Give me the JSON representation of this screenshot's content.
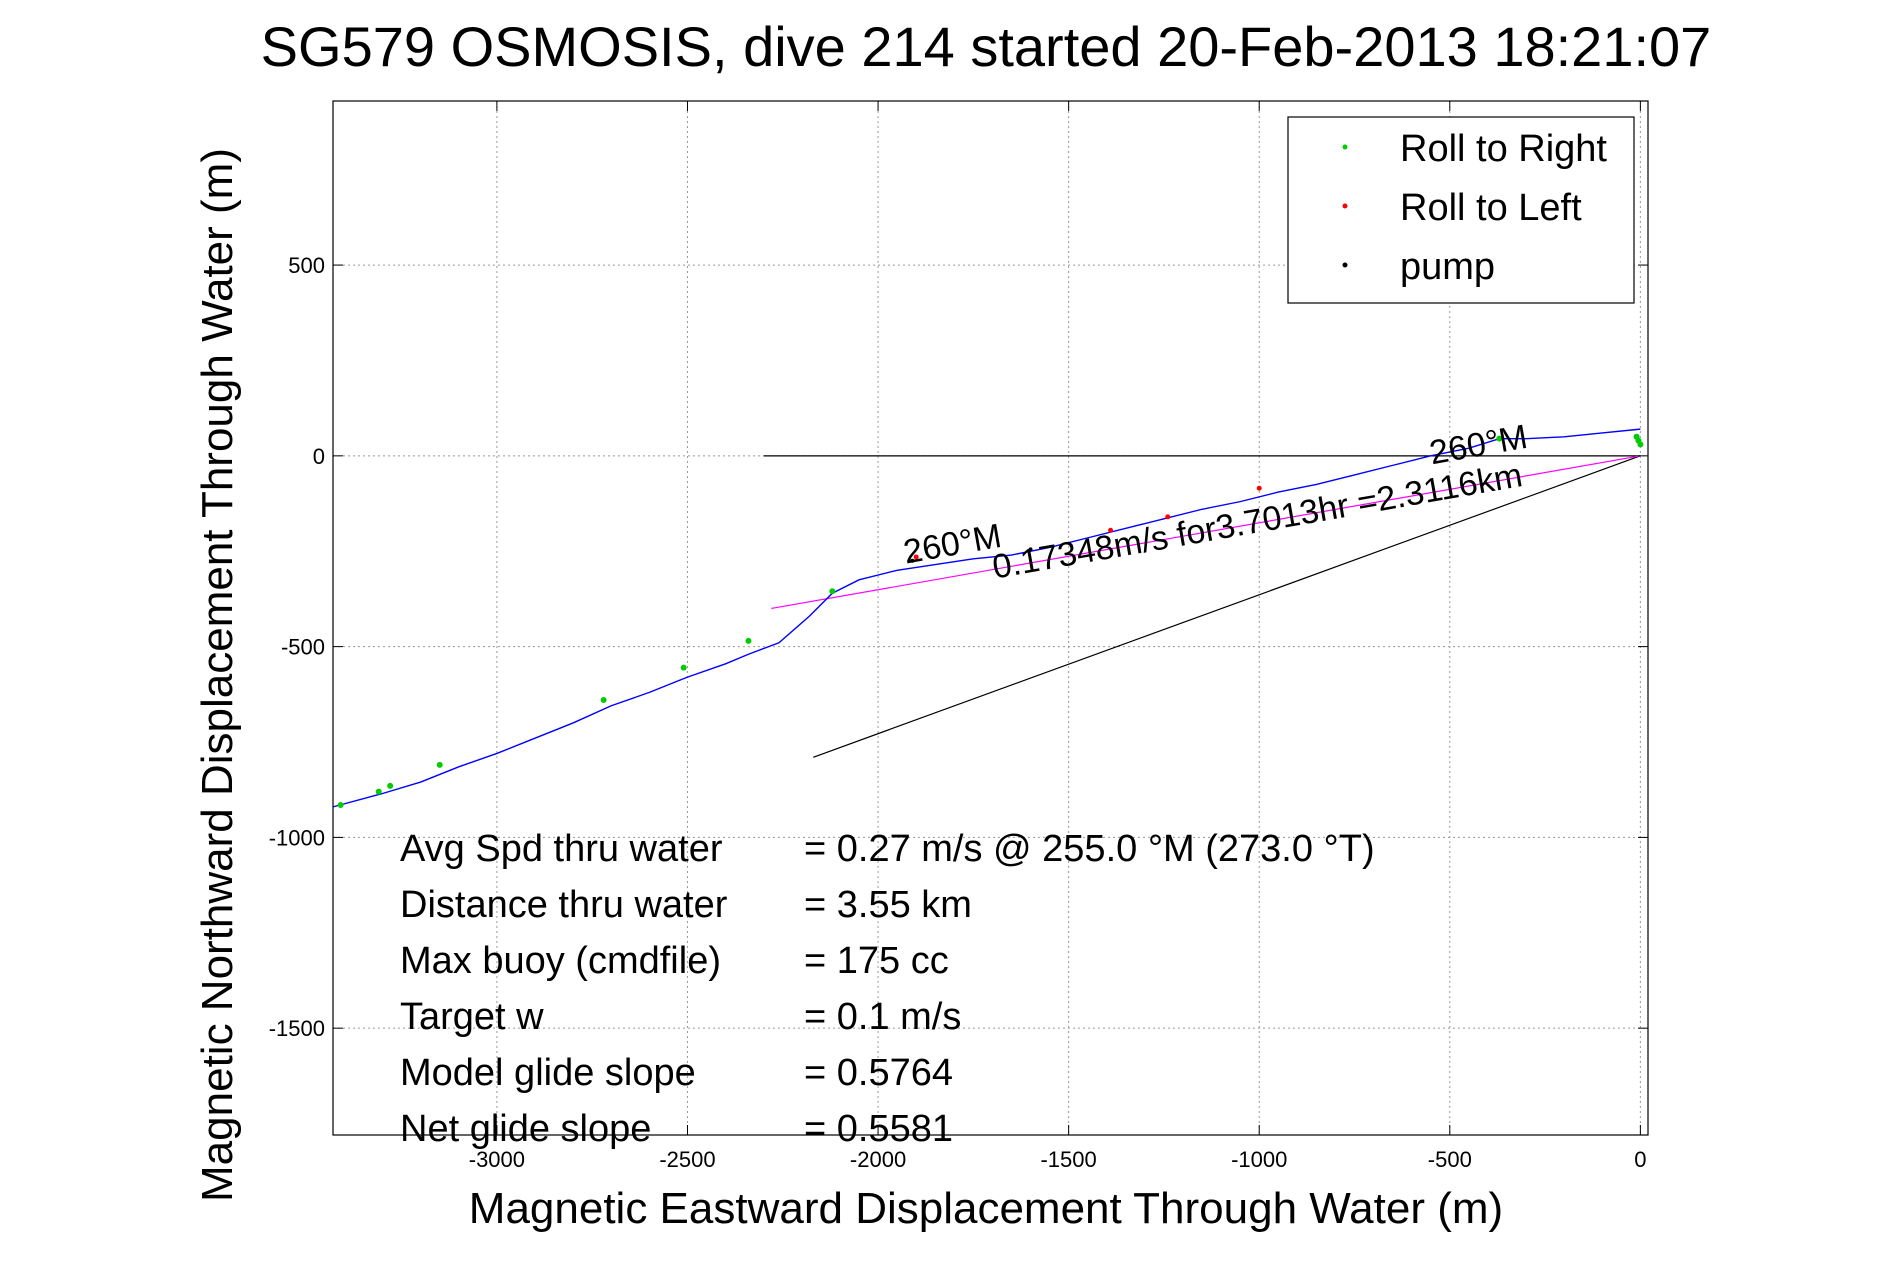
{
  "chart_data": {
    "type": "line",
    "title": "SG579 OSMOSIS, dive 214 started 20-Feb-2013 18:21:07",
    "xlabel": "Magnetic Eastward Displacement Through Water (m)",
    "ylabel": "Magnetic Northward Displacement Through Water (m)",
    "xlim": [
      -3430,
      20
    ],
    "ylim": [
      -1780,
      930
    ],
    "xticks": [
      -3000,
      -2500,
      -2000,
      -1500,
      -1000,
      -500,
      0
    ],
    "yticks": [
      500,
      0,
      -500,
      -1000,
      -1500
    ],
    "grid": true,
    "legend_position": "top-right",
    "legend": [
      {
        "label": "Roll to Right",
        "color": "#00cc00"
      },
      {
        "label": "Roll to Left",
        "color": "#ff0000"
      },
      {
        "label": "pump",
        "color": "#000000"
      }
    ],
    "track": {
      "color": "#0000ff",
      "x": [
        0,
        -100,
        -200,
        -300,
        -370,
        -450,
        -550,
        -650,
        -750,
        -850,
        -950,
        -1050,
        -1150,
        -1250,
        -1350,
        -1450,
        -1550,
        -1650,
        -1750,
        -1850,
        -1950,
        -2050,
        -2120,
        -2180,
        -2260,
        -2340,
        -2400,
        -2500,
        -2600,
        -2700,
        -2800,
        -2900,
        -3000,
        -3100,
        -3200,
        -3300,
        -3430
      ],
      "y": [
        70,
        60,
        50,
        45,
        45,
        20,
        0,
        -25,
        -50,
        -75,
        -95,
        -120,
        -140,
        -165,
        -190,
        -215,
        -240,
        -260,
        -270,
        -285,
        -300,
        -325,
        -360,
        -420,
        -490,
        -520,
        -545,
        -580,
        -620,
        -655,
        -700,
        -740,
        -780,
        -815,
        -855,
        -885,
        -920
      ]
    },
    "roll_right_points": {
      "x": [
        0,
        -5,
        -10,
        -370,
        -2120,
        -2340,
        -2510,
        -2720,
        -3150,
        -3280,
        -3310,
        -3410
      ],
      "y": [
        30,
        40,
        50,
        45,
        -355,
        -485,
        -555,
        -640,
        -810,
        -865,
        -880,
        -915
      ]
    },
    "roll_left_points": {
      "x": [
        -1000,
        -1240,
        -1390,
        -1900
      ],
      "y": [
        -85,
        -160,
        -195,
        -265
      ]
    },
    "pump_points": {
      "x": [
        -1600,
        -1910
      ],
      "y": [
        -245,
        -275
      ]
    },
    "current_line": {
      "color": "#ff00ff",
      "x": [
        0,
        -2280
      ],
      "y": [
        0,
        -400
      ]
    },
    "heading_line": {
      "color": "#000000",
      "x": [
        0,
        -2170
      ],
      "y": [
        0,
        -790
      ]
    },
    "zero_line": {
      "color": "#000000",
      "x": [
        -2300,
        0
      ],
      "y": [
        0,
        0
      ]
    },
    "annotations": [
      {
        "text": "0.17348m/s for3.7013hr =2.3116km",
        "x": -1000,
        "y": -200
      },
      {
        "text": "260°M",
        "x": -420,
        "y": 0
      },
      {
        "text": "260°M",
        "x": -1800,
        "y": -260
      }
    ],
    "stats": [
      {
        "label": "Avg Spd thru water",
        "value": "=  0.27 m/s @ 255.0 °M (273.0 °T)"
      },
      {
        "label": "Distance thru water",
        "value": "=  3.55 km"
      },
      {
        "label": "Max buoy (cmdfile)",
        "value": "= 175 cc"
      },
      {
        "label": "Target w",
        "value": "= 0.1 m/s"
      },
      {
        "label": "Model glide slope",
        "value": "= 0.5764"
      },
      {
        "label": "Net glide slope",
        "value": "= 0.5581"
      }
    ]
  }
}
